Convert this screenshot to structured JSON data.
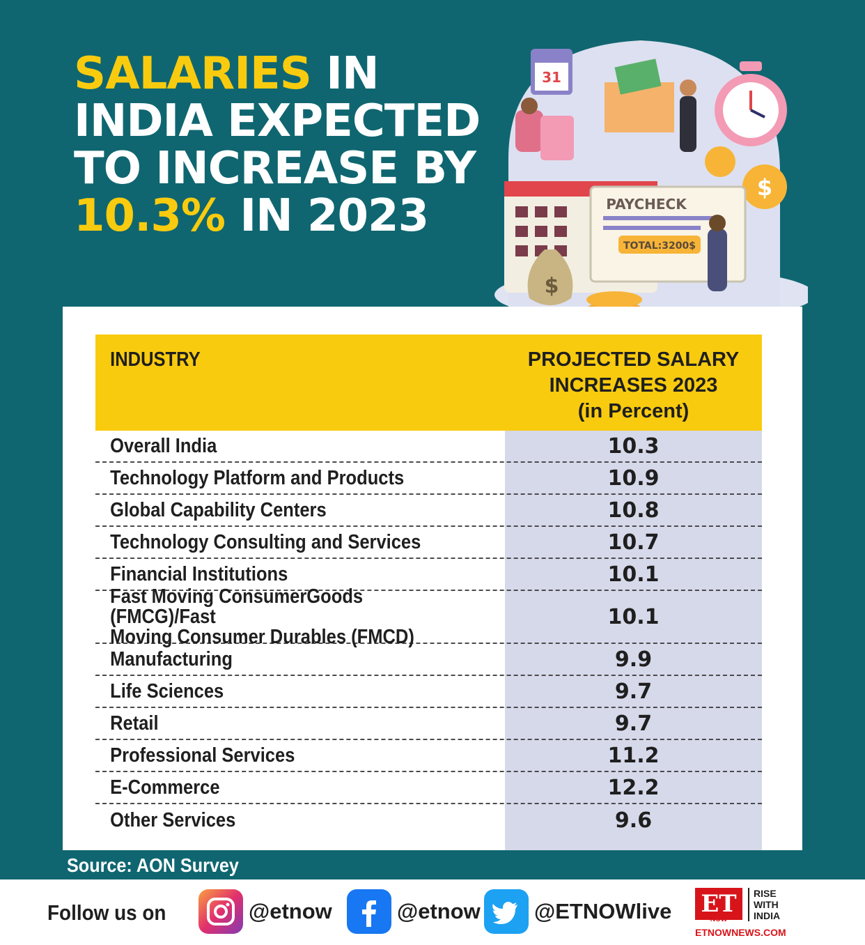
{
  "title": {
    "word1": "SALARIES",
    "word2": " IN INDIA EXPECTED TO INCREASE BY ",
    "highlight": "10.3%",
    "word3": " IN 2023"
  },
  "illustration": {
    "calendar_day": "31",
    "paycheck_label": "PAYCHECK",
    "paycheck_total": "TOTAL:3200$"
  },
  "table": {
    "header_industry": "INDUSTRY",
    "header_value": "PROJECTED SALARY\nINCREASES 2023\n(in Percent)",
    "rows": [
      {
        "industry": "Overall India",
        "value": "10.3"
      },
      {
        "industry": "Technology Platform and Products",
        "value": "10.9"
      },
      {
        "industry": "Global Capability Centers",
        "value": "10.8"
      },
      {
        "industry": "Technology Consulting and Services",
        "value": "10.7"
      },
      {
        "industry": "Financial Institutions",
        "value": "10.1"
      },
      {
        "industry": "Fast Moving ConsumerGoods (FMCG)/Fast\nMoving Consumer Durables (FMCD)",
        "value": "10.1"
      },
      {
        "industry": "Manufacturing",
        "value": "9.9"
      },
      {
        "industry": "Life Sciences",
        "value": "9.7"
      },
      {
        "industry": "Retail",
        "value": "9.7"
      },
      {
        "industry": "Professional Services",
        "value": "11.2"
      },
      {
        "industry": "E-Commerce",
        "value": "12.2"
      },
      {
        "industry": "Other Services",
        "value": "9.6"
      }
    ]
  },
  "source": "Source: AON Survey",
  "footer": {
    "follow": "Follow us on",
    "instagram": "@etnow",
    "facebook": "@etnow",
    "twitter": "@ETNOWlive",
    "logo_et": "ET",
    "logo_now": "NOW",
    "logo_tagline": "RISE\nWITH\nINDIA",
    "logo_site": "ETNOWNEWS.COM"
  },
  "colors": {
    "background": "#0f6670",
    "accent_yellow": "#f9cb0f",
    "value_column": "#d6d9ea",
    "brand_red": "#d7141a"
  }
}
